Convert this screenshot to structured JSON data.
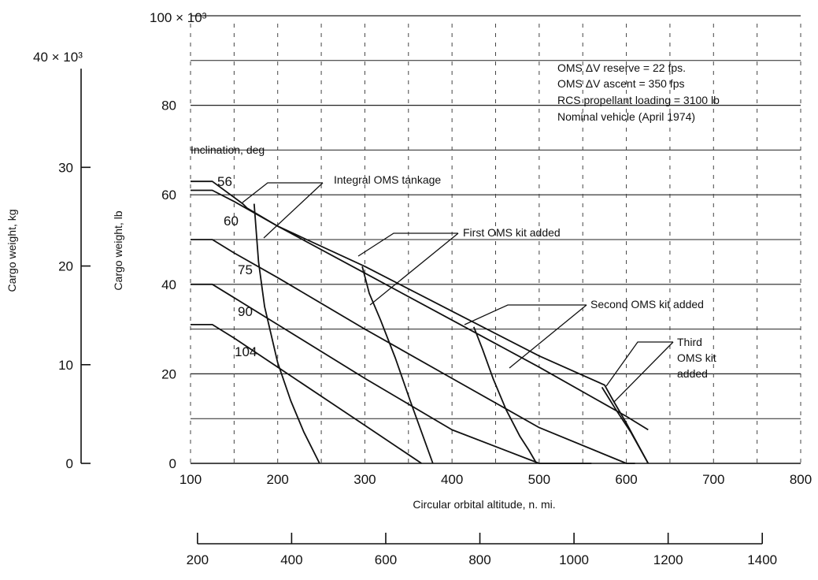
{
  "chart_data": {
    "type": "line",
    "title": "",
    "notes": [
      "OMS ΔV reserve = 22 fps.",
      "OMS ΔV ascent = 350 fps",
      "RCS propellant loading = 3100 lb",
      "Nominal vehicle (April 1974)"
    ],
    "xlabel": "Circular orbital altitude, n. mi.",
    "xlim": [
      100,
      800
    ],
    "x_ticks": [
      "100",
      "200",
      "300",
      "400",
      "500",
      "600",
      "700",
      "800"
    ],
    "x_secondary_ticks": [
      "200",
      "400",
      "600",
      "800",
      "1000",
      "1200",
      "1400"
    ],
    "ylabel": "Cargo weight, lb",
    "ylim": [
      0,
      100000
    ],
    "y_ticks": [
      "0",
      "20",
      "40",
      "60",
      "80"
    ],
    "y_top_label": "100 × 10³",
    "y_secondary_label": "Cargo weight, kg",
    "y_secondary_ticks": [
      "0",
      "10",
      "20",
      "30"
    ],
    "y_secondary_top_label": "40 × 10³",
    "legend_title": "Inclination, deg",
    "grid": true,
    "series": [
      {
        "name": "56",
        "x": [
          100,
          125,
          160,
          165,
          200,
          300,
          400,
          500,
          575,
          585,
          600,
          625
        ],
        "y": [
          63000,
          63000,
          58000,
          57000,
          53000,
          44000,
          34000,
          24000,
          17500,
          14000,
          9000,
          0
        ]
      },
      {
        "name": "60",
        "x": [
          100,
          125,
          150,
          200,
          300,
          400,
          500,
          600,
          625
        ],
        "y": [
          61000,
          61000,
          58500,
          53000,
          42500,
          32000,
          21500,
          10500,
          7500
        ]
      },
      {
        "name": "75",
        "x": [
          100,
          125,
          150,
          200,
          300,
          400,
          500,
          600,
          610
        ],
        "y": [
          50000,
          50000,
          47000,
          41500,
          30000,
          19000,
          8000,
          0,
          0
        ]
      },
      {
        "name": "90",
        "x": [
          100,
          125,
          150,
          200,
          300,
          400,
          500,
          560
        ],
        "y": [
          40000,
          40000,
          37000,
          31000,
          19000,
          7500,
          0,
          0
        ]
      },
      {
        "name": "104",
        "x": [
          100,
          125,
          150,
          200,
          300,
          365
        ],
        "y": [
          31000,
          31000,
          28000,
          21500,
          8500,
          0
        ]
      },
      {
        "name": "Integral OMS tankage",
        "x": [
          173,
          178,
          185,
          200,
          215,
          230,
          248
        ],
        "y": [
          58000,
          45000,
          35000,
          22500,
          14000,
          7000,
          0
        ]
      },
      {
        "name": "First OMS kit added",
        "x": [
          297,
          305,
          318,
          335,
          352,
          365,
          378
        ],
        "y": [
          44000,
          38000,
          32000,
          23500,
          14000,
          7000,
          0
        ]
      },
      {
        "name": "Second OMS kit added",
        "x": [
          425,
          435,
          447,
          462,
          478,
          488,
          497
        ],
        "y": [
          30500,
          25500,
          19000,
          12000,
          6000,
          3000,
          0
        ]
      },
      {
        "name": "Third OMS kit added",
        "x": [
          572,
          588,
          605,
          625
        ],
        "y": [
          17000,
          12000,
          7000,
          0
        ]
      }
    ],
    "annotations": [
      {
        "text": "Integral OMS tankage"
      },
      {
        "text": "First OMS kit added"
      },
      {
        "text": "Second OMS kit added"
      },
      {
        "text": "Third"
      },
      {
        "text": "OMS kit"
      },
      {
        "text": "added"
      }
    ]
  }
}
